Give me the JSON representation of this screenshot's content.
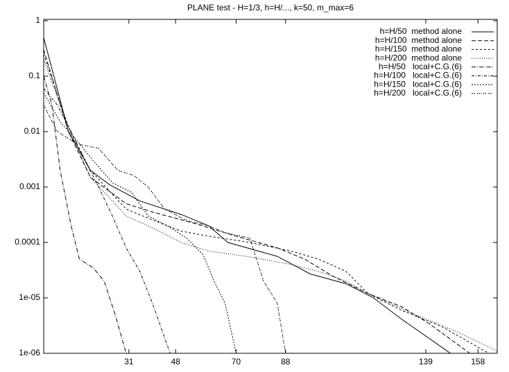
{
  "chart_data": {
    "type": "line",
    "title": "PLANE test - H=1/3, h=H/..., k=50, m_max=6",
    "log_y": true,
    "xlim": [
      0,
      165
    ],
    "xticks": [
      31,
      48,
      70,
      88,
      139,
      158
    ],
    "ylim": [
      1e-06,
      1
    ],
    "yticks": [
      1,
      0.1,
      0.01,
      0.001,
      0.0001,
      {
        "value": 1e-05,
        "label": "1e-05"
      },
      {
        "value": 1e-06,
        "label": "1e-06"
      }
    ],
    "legend": "top-right",
    "series": [
      {
        "name": "h=H/50  method alone",
        "color": "#000000",
        "dash": "none",
        "x": [
          0,
          9,
          17,
          24,
          35,
          50,
          60,
          67,
          85,
          97,
          110,
          120,
          130,
          148
        ],
        "values": [
          0.5,
          0.01,
          0.002,
          0.0011,
          0.00056,
          0.00032,
          0.0002,
          0.0001,
          5.6e-05,
          2.7e-05,
          1.8e-05,
          1e-05,
          4.2e-06,
          1e-06
        ]
      },
      {
        "name": "h=H/100  method alone",
        "color": "#000000",
        "dash": "6 3",
        "x": [
          0,
          9,
          17,
          30,
          40,
          55,
          70,
          85,
          95,
          105,
          118,
          130,
          140,
          155
        ],
        "values": [
          0.3,
          0.01,
          0.0015,
          0.0005,
          0.00035,
          0.00022,
          0.00013,
          8e-05,
          5e-05,
          2.5e-05,
          1.2e-05,
          7e-06,
          3.5e-06,
          1e-06
        ]
      },
      {
        "name": "h=H/150  method alone",
        "color": "#000000",
        "dash": "3 3",
        "x": [
          0,
          9,
          17,
          30,
          40,
          50,
          60,
          75,
          90,
          100,
          110,
          118,
          130,
          145,
          162
        ],
        "values": [
          0.25,
          0.012,
          0.002,
          0.0004,
          0.00025,
          0.00016,
          0.00013,
          0.0001,
          7e-05,
          5e-05,
          3e-05,
          1.2e-05,
          6e-06,
          3e-06,
          1e-06
        ]
      },
      {
        "name": "h=H/200  method alone",
        "color": "#000000",
        "dash": "1 2",
        "x": [
          0,
          9,
          17,
          30,
          40,
          50,
          60,
          75,
          90,
          100,
          110,
          118,
          135,
          150,
          165
        ],
        "values": [
          0.2,
          0.012,
          0.0015,
          0.0003,
          0.00018,
          0.0001,
          7e-05,
          5.5e-05,
          4e-05,
          3e-05,
          2e-05,
          1.2e-05,
          5e-06,
          2.5e-06,
          1.1e-06
        ]
      },
      {
        "name": "h=H/50   local+C.G.(6)",
        "color": "#000000",
        "dash": "6 2 1 2",
        "x": [
          0,
          3,
          6,
          10,
          13,
          18,
          22,
          26,
          30
        ],
        "values": [
          0.1,
          0.03,
          0.002,
          0.0002,
          5e-05,
          3.5e-05,
          2e-05,
          5e-06,
          1e-06
        ]
      },
      {
        "name": "h=H/100   local+C.G.(6)",
        "color": "#000000",
        "dash": "4 2 1 2",
        "x": [
          0,
          5,
          10,
          15,
          20,
          25,
          30,
          35,
          40,
          46
        ],
        "values": [
          0.06,
          0.03,
          0.01,
          0.003,
          0.001,
          0.0003,
          8e-05,
          3e-05,
          7e-06,
          1e-06
        ]
      },
      {
        "name": "h=H/150   local+C.G.(6)",
        "color": "#000000",
        "dash": "2 2",
        "x": [
          0,
          6,
          12,
          18,
          25,
          32,
          38,
          45,
          52,
          58,
          62,
          66,
          70
        ],
        "values": [
          0.05,
          0.015,
          0.007,
          0.003,
          0.0012,
          0.0008,
          0.0003,
          0.0002,
          0.00012,
          6e-05,
          2e-05,
          8e-06,
          1e-06
        ]
      },
      {
        "name": "h=H/200   local+C.G.(6)",
        "color": "#000000",
        "dash": "2 1 2 3",
        "x": [
          0,
          5,
          12,
          20,
          27,
          33,
          38,
          44,
          52,
          60,
          66,
          75,
          80,
          85,
          88
        ],
        "values": [
          0.03,
          0.01,
          0.006,
          0.005,
          0.002,
          0.0016,
          0.001,
          0.0004,
          0.00025,
          0.0002,
          0.00015,
          0.00012,
          2e-05,
          8e-06,
          1e-06
        ]
      }
    ]
  }
}
